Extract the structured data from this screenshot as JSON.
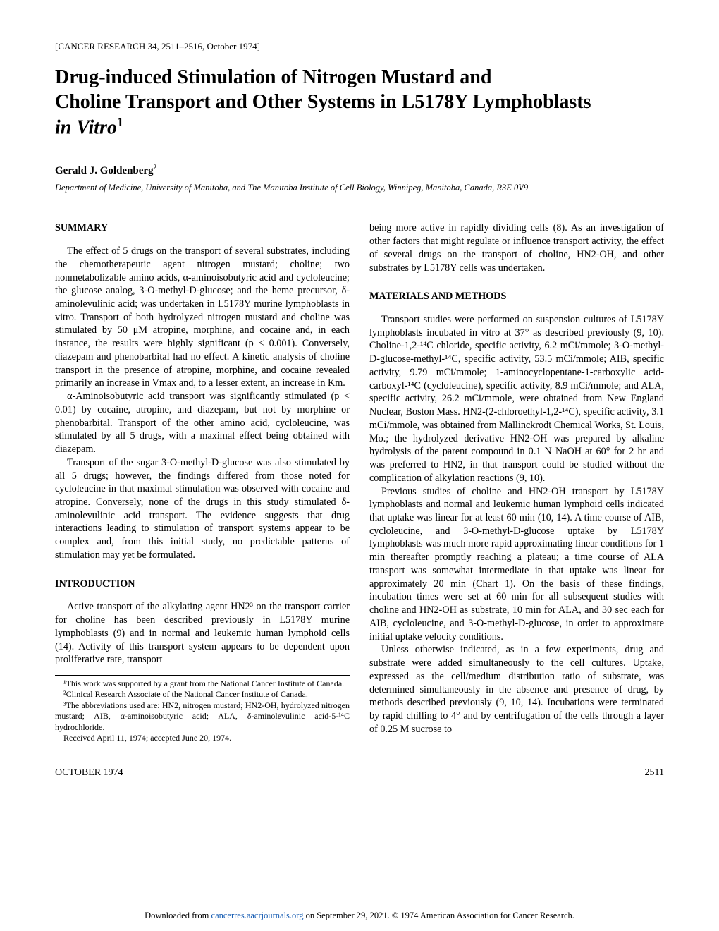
{
  "journal_ref": "[CANCER RESEARCH 34, 2511–2516, October 1974]",
  "title_line1": "Drug-induced Stimulation of Nitrogen Mustard and",
  "title_line2": "Choline Transport and Other Systems in L5178Y Lymphoblasts",
  "title_line3_prefix": "in Vitro",
  "title_sup": "1",
  "author": "Gerald J. Goldenberg",
  "author_sup": "2",
  "affiliation": "Department of Medicine, University of Manitoba, and The Manitoba Institute of Cell Biology, Winnipeg, Manitoba, Canada, R3E 0V9",
  "summary_head": "SUMMARY",
  "summary_p1": "The effect of 5 drugs on the transport of several substrates, including the chemotherapeutic agent nitrogen mustard; choline; two nonmetabolizable amino acids, α-aminoisobutyric acid and cycloleucine; the glucose analog, 3-O-methyl-D-glucose; and the heme precursor, δ-aminolevulinic acid; was undertaken in L5178Y murine lymphoblasts in vitro. Transport of both hydrolyzed nitrogen mustard and choline was stimulated by 50 μM atropine, morphine, and cocaine and, in each instance, the results were highly significant (p < 0.001). Conversely, diazepam and phenobarbital had no effect. A kinetic analysis of choline transport in the presence of atropine, morphine, and cocaine revealed primarily an increase in Vmax and, to a lesser extent, an increase in Km.",
  "summary_p2": "α-Aminoisobutyric acid transport was significantly stimulated (p < 0.01) by cocaine, atropine, and diazepam, but not by morphine or phenobarbital. Transport of the other amino acid, cycloleucine, was stimulated by all 5 drugs, with a maximal effect being obtained with diazepam.",
  "summary_p3": "Transport of the sugar 3-O-methyl-D-glucose was also stimulated by all 5 drugs; however, the findings differed from those noted for cycloleucine in that maximal stimulation was observed with cocaine and atropine. Conversely, none of the drugs in this study stimulated δ-aminolevulinic acid transport. The evidence suggests that drug interactions leading to stimulation of transport systems appear to be complex and, from this initial study, no predictable patterns of stimulation may yet be formulated.",
  "intro_head": "INTRODUCTION",
  "intro_p1": "Active transport of the alkylating agent HN2³ on the transport carrier for choline has been described previously in L5178Y murine lymphoblasts (9) and in normal and leukemic human lymphoid cells (14). Activity of this transport system appears to be dependent upon proliferative rate, transport",
  "right_p1": "being more active in rapidly dividing cells (8). As an investigation of other factors that might regulate or influence transport activity, the effect of several drugs on the transport of choline, HN2-OH, and other substrates by L5178Y cells was undertaken.",
  "methods_head": "MATERIALS AND METHODS",
  "methods_p1": "Transport studies were performed on suspension cultures of L5178Y lymphoblasts incubated in vitro at 37° as described previously (9, 10). Choline-1,2-¹⁴C chloride, specific activity, 6.2 mCi/mmole; 3-O-methyl-D-glucose-methyl-¹⁴C, specific activity, 53.5 mCi/mmole; AIB, specific activity, 9.79 mCi/mmole; 1-aminocyclopentane-1-carboxylic acid-carboxyl-¹⁴C (cycloleucine), specific activity, 8.9 mCi/mmole; and ALA, specific activity, 26.2 mCi/mmole, were obtained from New England Nuclear, Boston Mass. HN2-(2-chloroethyl-1,2-¹⁴C), specific activity, 3.1 mCi/mmole, was obtained from Mallinckrodt Chemical Works, St. Louis, Mo.; the hydrolyzed derivative HN2-OH was prepared by alkaline hydrolysis of the parent compound in 0.1 N NaOH at 60° for 2 hr and was preferred to HN2, in that transport could be studied without the complication of alkylation reactions (9, 10).",
  "methods_p2": "Previous studies of choline and HN2-OH transport by L5178Y lymphoblasts and normal and leukemic human lymphoid cells indicated that uptake was linear for at least 60 min (10, 14). A time course of AIB, cycloleucine, and 3-O-methyl-D-glucose uptake by L5178Y lymphoblasts was much more rapid approximating linear conditions for 1 min thereafter promptly reaching a plateau; a time course of ALA transport was somewhat intermediate in that uptake was linear for approximately 20 min (Chart 1). On the basis of these findings, incubation times were set at 60 min for all subsequent studies with choline and HN2-OH as substrate, 10 min for ALA, and 30 sec each for AIB, cycloleucine, and 3-O-methyl-D-glucose, in order to approximate initial uptake velocity conditions.",
  "methods_p3": "Unless otherwise indicated, as in a few experiments, drug and substrate were added simultaneously to the cell cultures. Uptake, expressed as the cell/medium distribution ratio of substrate, was determined simultaneously in the absence and presence of drug, by methods described previously (9, 10, 14). Incubations were terminated by rapid chilling to 4° and by centrifugation of the cells through a layer of 0.25 M sucrose to",
  "footnote1": "¹This work was supported by a grant from the National Cancer Institute of Canada.",
  "footnote2": "²Clinical Research Associate of the National Cancer Institute of Canada.",
  "footnote3": "³The abbreviations used are: HN2, nitrogen mustard; HN2-OH, hydrolyzed nitrogen mustard; AIB, α-aminoisobutyric acid; ALA, δ-aminolevulinic acid-5-¹⁴C hydrochloride.",
  "footnote4": "Received April 11, 1974; accepted June 20, 1974.",
  "footer_date": "OCTOBER 1974",
  "footer_page": "2511",
  "download_prefix": "Downloaded from ",
  "download_link_text": "cancerres.aacrjournals.org",
  "download_suffix": " on September 29, 2021. © 1974 American Association for Cancer Research."
}
